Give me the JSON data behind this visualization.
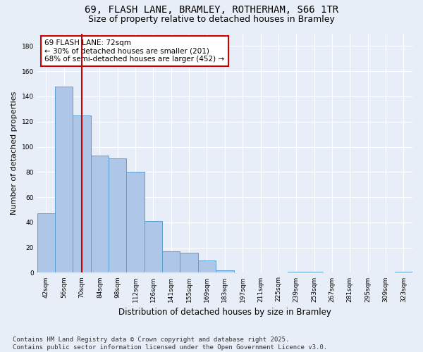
{
  "title1": "69, FLASH LANE, BRAMLEY, ROTHERHAM, S66 1TR",
  "title2": "Size of property relative to detached houses in Bramley",
  "xlabel": "Distribution of detached houses by size in Bramley",
  "ylabel": "Number of detached properties",
  "categories": [
    "42sqm",
    "56sqm",
    "70sqm",
    "84sqm",
    "98sqm",
    "112sqm",
    "126sqm",
    "141sqm",
    "155sqm",
    "169sqm",
    "183sqm",
    "197sqm",
    "211sqm",
    "225sqm",
    "239sqm",
    "253sqm",
    "267sqm",
    "281sqm",
    "295sqm",
    "309sqm",
    "323sqm"
  ],
  "values": [
    47,
    148,
    125,
    93,
    91,
    80,
    41,
    17,
    16,
    10,
    2,
    0,
    0,
    0,
    1,
    1,
    0,
    0,
    0,
    0,
    1
  ],
  "bar_color": "#aec6e8",
  "bar_edge_color": "#5a9fd4",
  "vline_x_index": 2,
  "vline_color": "#cc0000",
  "annotation_text": "69 FLASH LANE: 72sqm\n← 30% of detached houses are smaller (201)\n68% of semi-detached houses are larger (452) →",
  "annotation_box_color": "#ffffff",
  "annotation_box_edge": "#cc0000",
  "ylim": [
    0,
    190
  ],
  "yticks": [
    0,
    20,
    40,
    60,
    80,
    100,
    120,
    140,
    160,
    180
  ],
  "footer": "Contains HM Land Registry data © Crown copyright and database right 2025.\nContains public sector information licensed under the Open Government Licence v3.0.",
  "bg_color": "#e8eef8",
  "grid_color": "#ffffff",
  "title_fontsize": 10,
  "subtitle_fontsize": 9,
  "footer_fontsize": 6.5,
  "annot_fontsize": 7.5,
  "ylabel_fontsize": 8,
  "xlabel_fontsize": 8.5,
  "tick_fontsize": 6.5
}
